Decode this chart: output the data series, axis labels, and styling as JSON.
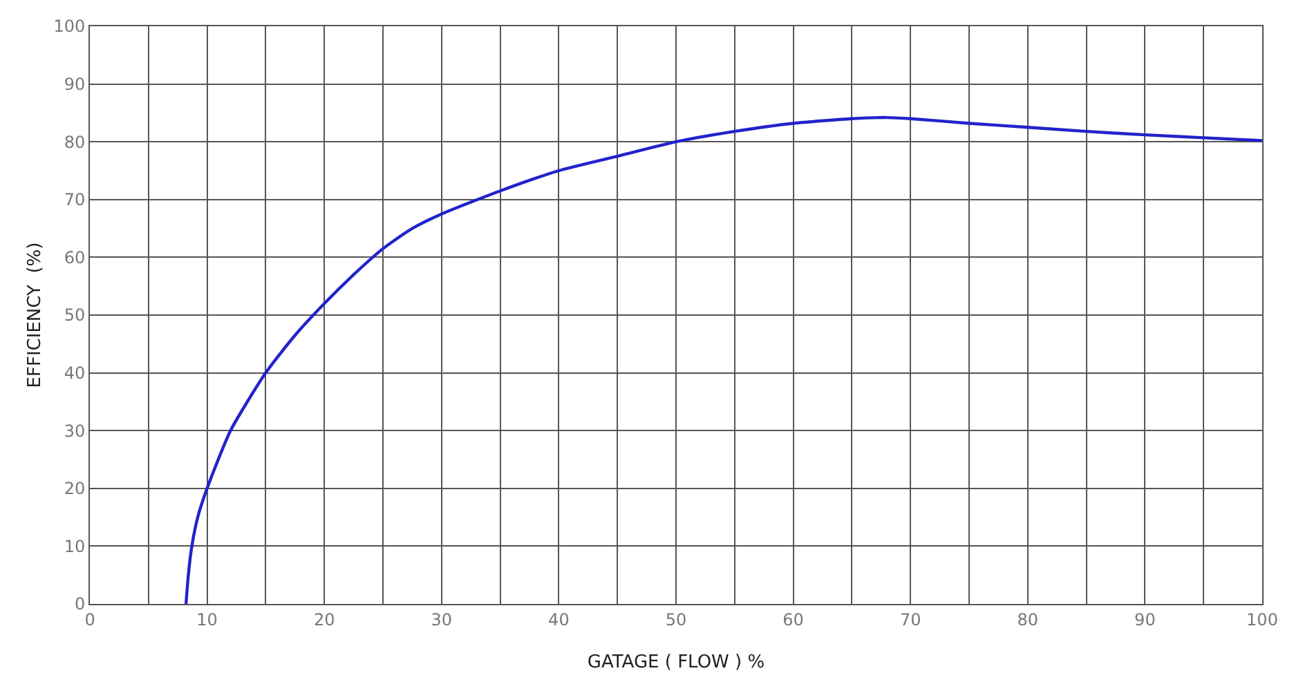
{
  "chart_data": {
    "type": "line",
    "xlabel": "GATAGE ( FLOW ) %",
    "ylabel": "EFFICIENCY  (%)",
    "series": [
      {
        "color": "#2222cc",
        "x": [
          8.2,
          8.4,
          8.7,
          9.2,
          10,
          12,
          15,
          17.5,
          20,
          22.5,
          25,
          27.5,
          30,
          35,
          40,
          45,
          50,
          55,
          60,
          65,
          68,
          70,
          75,
          80,
          85,
          90,
          95,
          100
        ],
        "values": [
          0,
          5,
          10,
          15,
          20,
          30,
          40,
          46.5,
          52,
          57,
          61.5,
          65,
          67.5,
          71.5,
          75,
          77.5,
          80,
          81.8,
          83.2,
          84,
          84.2,
          84,
          83.2,
          82.5,
          81.8,
          81.2,
          80.7,
          80.2
        ]
      }
    ],
    "xlim": [
      0,
      100
    ],
    "ylim": [
      0,
      100
    ],
    "xticks": [
      0,
      {
        "value": 5,
        "label": null
      },
      10,
      {
        "value": 15,
        "label": null
      },
      20,
      {
        "value": 25,
        "label": null
      },
      30,
      {
        "value": 35,
        "label": null
      },
      40,
      {
        "value": 45,
        "label": null
      },
      50,
      {
        "value": 55,
        "label": null
      },
      60,
      {
        "value": 65,
        "label": null
      },
      70,
      {
        "value": 75,
        "label": null
      },
      80,
      {
        "value": 85,
        "label": null
      },
      90,
      {
        "value": 95,
        "label": null
      },
      100
    ],
    "yticks": [
      0,
      10,
      20,
      30,
      40,
      50,
      60,
      70,
      80,
      90,
      100
    ],
    "grid": true,
    "marker": "none",
    "line_style": "solid"
  }
}
